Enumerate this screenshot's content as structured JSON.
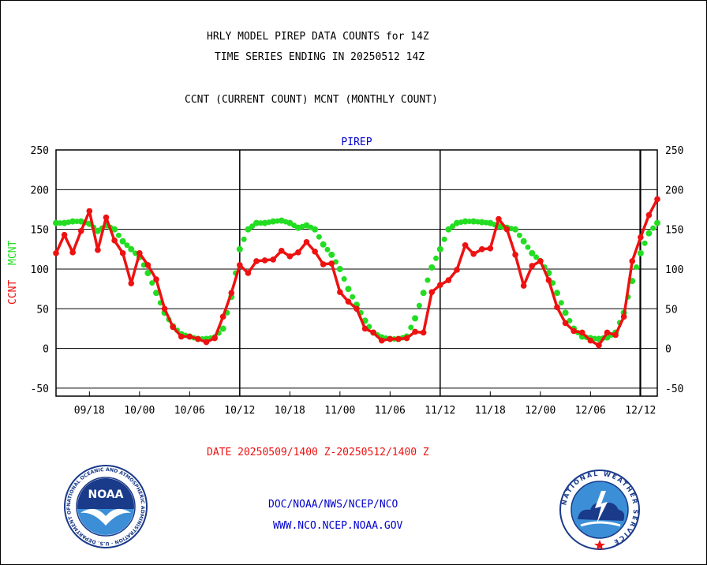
{
  "title_line1": "HRLY MODEL PIREP DATA COUNTS for 14Z",
  "title_line2": "TIME SERIES ENDING IN 20250512 14Z",
  "subtitle": "CCNT (CURRENT COUNT) MCNT (MONTHLY COUNT)",
  "date_range": "DATE 20250509/1400 Z-20250512/1400 Z",
  "footer_link1": "DOC/NOAA/NWS/NCEP/NCO",
  "footer_link2": "WWW.NCO.NCEP.NOAA.GOV",
  "logos": {
    "left": {
      "text": "NOAA",
      "ring_text": "NATIONAL OCEANIC AND ATMOSPHERIC ADMINISTRATION · U.S. DEPARTMENT OF COMMERCE"
    },
    "right": {
      "ring_text": "NATIONAL WEATHER SERVICE"
    }
  },
  "colors": {
    "ccnt": "#ee1111",
    "mcnt": "#22dd22",
    "panel_title": "#0000cc",
    "link": "#0000cc"
  },
  "chart_data": {
    "type": "line",
    "title": "PIREP",
    "ylabel_left": "CCNT",
    "ylabel_right": "MCNT",
    "ylim": [
      -60,
      250
    ],
    "yticks": [
      -50,
      0,
      50,
      100,
      150,
      200,
      250
    ],
    "xticks": [
      "09/18",
      "10/00",
      "10/06",
      "10/12",
      "10/18",
      "11/00",
      "11/06",
      "11/12",
      "11/18",
      "12/00",
      "12/06",
      "12/12"
    ],
    "day_boundaries": [
      "10/12",
      "11/12",
      "12/12"
    ],
    "grid": true,
    "series": [
      {
        "name": "CCNT",
        "color": "#ee1111",
        "values": [
          120,
          143,
          121,
          148,
          173,
          124,
          165,
          136,
          120,
          82,
          120,
          105,
          87,
          50,
          27,
          15,
          15,
          12,
          8,
          13,
          40,
          70,
          105,
          95,
          110,
          111,
          112,
          123,
          116,
          121,
          134,
          122,
          106,
          107,
          71,
          59,
          50,
          25,
          20,
          10,
          12,
          12,
          13,
          21,
          20,
          71,
          80,
          86,
          99,
          130,
          119,
          125,
          126,
          163,
          150,
          118,
          79,
          104,
          110,
          86,
          52,
          32,
          22,
          20,
          10,
          4,
          20,
          17,
          40,
          110,
          140,
          168,
          188
        ]
      },
      {
        "name": "MCNT",
        "color": "#22dd22",
        "values": [
          158,
          158,
          160,
          160,
          157,
          148,
          155,
          150,
          135,
          125,
          115,
          95,
          70,
          45,
          28,
          18,
          15,
          12,
          12,
          14,
          25,
          65,
          125,
          150,
          158,
          158,
          160,
          161,
          158,
          152,
          155,
          150,
          131,
          118,
          100,
          75,
          55,
          35,
          20,
          14,
          12,
          12,
          15,
          38,
          70,
          102,
          125,
          150,
          158,
          160,
          160,
          159,
          158,
          154,
          152,
          150,
          135,
          120,
          110,
          95,
          70,
          45,
          25,
          15,
          13,
          12,
          14,
          20,
          45,
          85,
          120,
          145,
          158
        ]
      }
    ]
  }
}
